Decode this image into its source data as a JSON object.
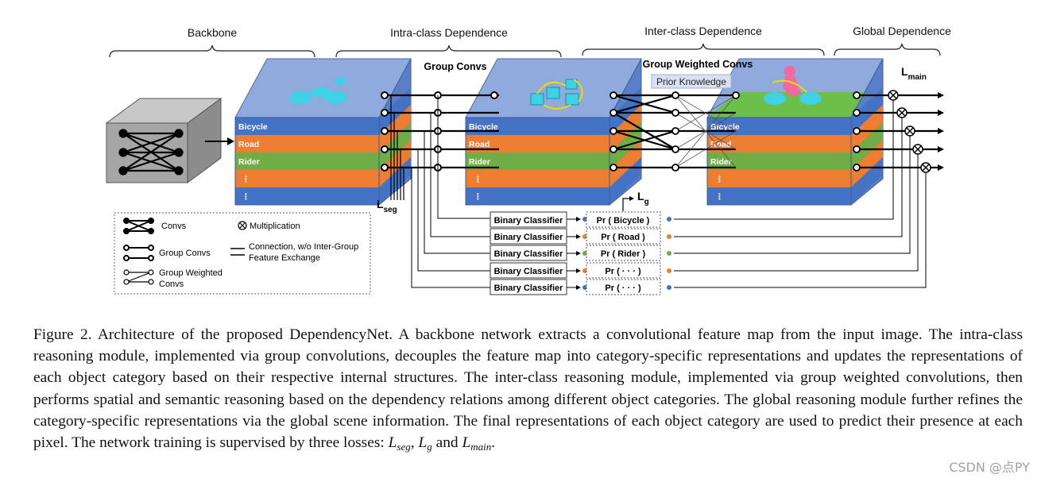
{
  "section_labels": [
    "Backbone",
    "Intra-class Dependence",
    "Inter-class Dependence",
    "Global Dependence"
  ],
  "annotations": {
    "group_convs": "Group Convs",
    "group_weighted_convs": "Group Weighted Convs",
    "prior_knowledge": "Prior Knowledge",
    "l_main_base": "L",
    "l_main_sub": "main",
    "l_seg_base": "L",
    "l_seg_sub": "seg",
    "l_g_base": "L",
    "l_g_sub": "g"
  },
  "feature_layers": [
    "Bicycle",
    "Road",
    "Rider",
    "⋮",
    "⋮"
  ],
  "classifiers": [
    {
      "label": "Binary Classifier",
      "prob": "Pr ( Bicycle )",
      "dot": "#4472c4"
    },
    {
      "label": "Binary Classifier",
      "prob": "Pr ( Road )",
      "dot": "#ed7d31"
    },
    {
      "label": "Binary Classifier",
      "prob": "Pr ( Rider )",
      "dot": "#70ad47"
    },
    {
      "label": "Binary Classifier",
      "prob": "Pr ( · · · )",
      "dot": "#ed7d31"
    },
    {
      "label": "Binary Classifier",
      "prob": "Pr ( · · · )",
      "dot": "#4472c4"
    }
  ],
  "legend": {
    "convs": "Convs",
    "multiplication": "Multiplication",
    "group_convs": "Group Convs",
    "connection_line1": "Connection, w/o  Inter-Group",
    "connection_line2": "Feature Exchange",
    "group_weighted_line1": "Group Weighted",
    "group_weighted_line2": "Convs"
  },
  "colors": {
    "blue_layer": "#4472c4",
    "orange_layer": "#ed7d31",
    "green_layer": "#70ad47",
    "cube_top": "#7f9bd6",
    "cube_top_face": "#97afe3",
    "cyan_object": "#3fd1e6",
    "rider_pink": "#f06aa0",
    "road_green": "#6cc04a",
    "backbone_gray": "#a6a6a6"
  },
  "caption": {
    "text": "Figure 2. Architecture of the proposed DependencyNet. A backbone network extracts a convolutional feature map from the input image. The intra-class reasoning module, implemented via group convolutions, decouples the feature map into category-specific representations and updates the representations of each object category based on their respective internal structures. The inter-class reasoning module, implemented via group weighted convolutions, then performs spatial and semantic reasoning based on the dependency relations among different object categories. The global reasoning module further refines the category-specific representations via the global scene information. The final representations of each object category are used to predict their presence at each pixel. The network training is supervised by three losses: ",
    "loss1_base": "L",
    "loss1_sub": "seg",
    "sep1": ", ",
    "loss2_base": "L",
    "loss2_sub": "g",
    "sep2": " and ",
    "loss3_base": "L",
    "loss3_sub": "main",
    "end": "."
  },
  "watermark": "CSDN @点PY"
}
